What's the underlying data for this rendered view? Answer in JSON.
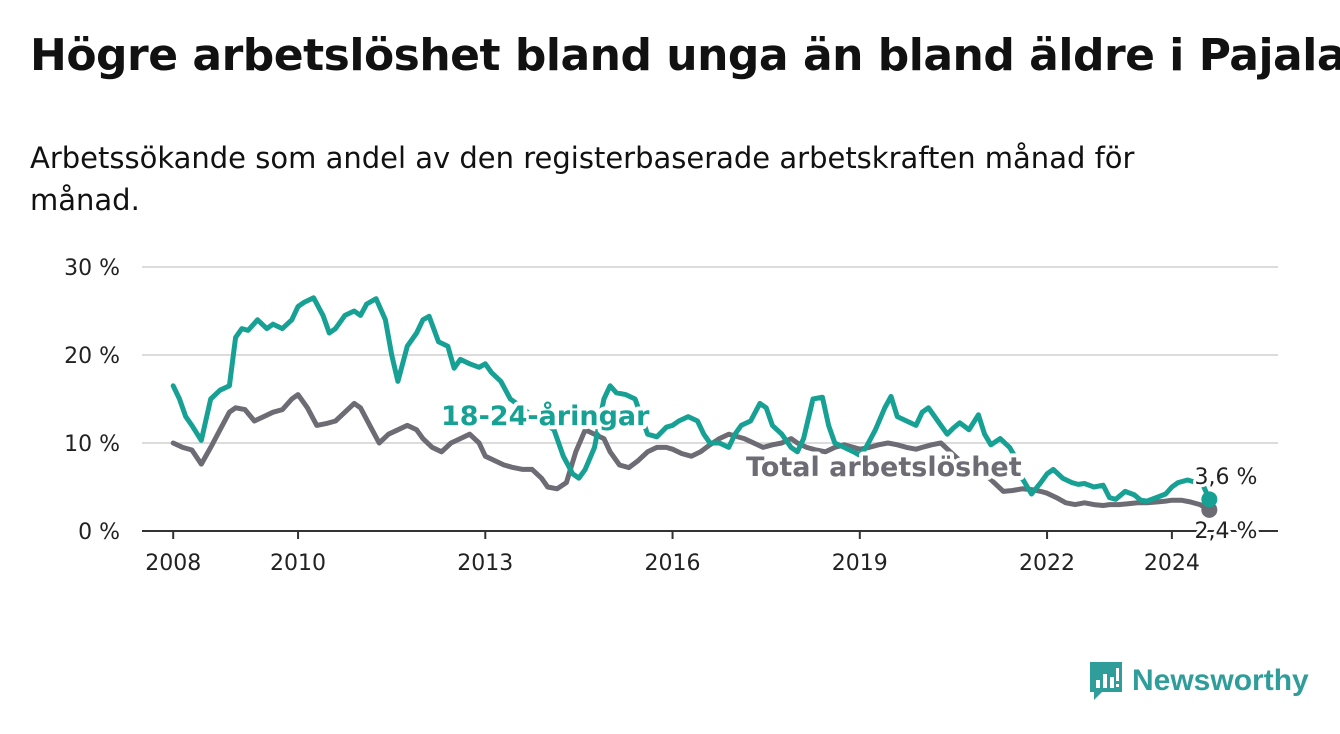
{
  "title": "Högre arbetslöshet bland unga än bland äldre i Pajala",
  "subtitle": "Arbetssökande som andel av den registerbaserade arbetskraften månad för månad.",
  "brand": "Newsworthy",
  "colors": {
    "youth": "#16a194",
    "total": "#6d6b73",
    "brand": "#2f9d9a"
  },
  "chart_data": {
    "type": "line",
    "title": "",
    "xlabel": "",
    "ylabel": "",
    "ylim": [
      0,
      30
    ],
    "xlim": [
      2007.5,
      2025.7
    ],
    "y_ticks": [
      0,
      10,
      20,
      30
    ],
    "y_tick_labels": [
      "0 %",
      "10 %",
      "20 %",
      "30 %"
    ],
    "x_ticks": [
      2008,
      2010,
      2013,
      2016,
      2019,
      2022,
      2024
    ],
    "x_tick_labels": [
      "2008",
      "2010",
      "2013",
      "2016",
      "2019",
      "2022",
      "2024"
    ],
    "grid": true,
    "legend": "inline",
    "series": [
      {
        "name": "18-24-åringar",
        "end_label": "3,6 %",
        "x": [
          2008.0,
          2008.1,
          2008.2,
          2008.3,
          2008.45,
          2008.6,
          2008.75,
          2008.9,
          2009.0,
          2009.1,
          2009.2,
          2009.35,
          2009.5,
          2009.6,
          2009.75,
          2009.9,
          2010.0,
          2010.1,
          2010.25,
          2010.4,
          2010.5,
          2010.6,
          2010.75,
          2010.9,
          2011.0,
          2011.1,
          2011.25,
          2011.4,
          2011.5,
          2011.6,
          2011.75,
          2011.9,
          2012.0,
          2012.1,
          2012.25,
          2012.4,
          2012.5,
          2012.6,
          2012.75,
          2012.9,
          2013.0,
          2013.1,
          2013.25,
          2013.4,
          2013.5,
          2013.6,
          2013.75,
          2013.9,
          2014.0,
          2014.1,
          2014.25,
          2014.4,
          2014.5,
          2014.6,
          2014.75,
          2014.9,
          2015.0,
          2015.1,
          2015.25,
          2015.4,
          2015.5,
          2015.6,
          2015.75,
          2015.9,
          2016.0,
          2016.1,
          2016.25,
          2016.4,
          2016.5,
          2016.6,
          2016.75,
          2016.9,
          2017.0,
          2017.1,
          2017.25,
          2017.4,
          2017.5,
          2017.6,
          2017.75,
          2017.9,
          2018.0,
          2018.1,
          2018.25,
          2018.4,
          2018.5,
          2018.6,
          2018.75,
          2018.9,
          2019.0,
          2019.1,
          2019.25,
          2019.4,
          2019.5,
          2019.6,
          2019.75,
          2019.9,
          2020.0,
          2020.1,
          2020.25,
          2020.4,
          2020.5,
          2020.6,
          2020.75,
          2020.9,
          2021.0,
          2021.1,
          2021.25,
          2021.4,
          2021.5,
          2021.6,
          2021.75,
          2021.9,
          2022.0,
          2022.1,
          2022.25,
          2022.4,
          2022.5,
          2022.6,
          2022.75,
          2022.9,
          2023.0,
          2023.1,
          2023.25,
          2023.4,
          2023.5,
          2023.6,
          2023.75,
          2023.9,
          2024.0,
          2024.1,
          2024.25,
          2024.4,
          2024.5,
          2024.6
        ],
        "y": [
          16.5,
          15,
          13,
          12,
          10.3,
          15,
          16,
          16.5,
          22,
          23,
          22.8,
          24,
          23,
          23.5,
          23,
          24,
          25.5,
          26,
          26.5,
          24.5,
          22.5,
          23,
          24.5,
          25,
          24.5,
          25.8,
          26.4,
          24,
          20,
          17,
          21,
          22.5,
          24,
          24.4,
          21.5,
          21,
          18.5,
          19.5,
          19,
          18.6,
          19,
          18,
          17,
          15,
          14.5,
          14,
          13,
          12.5,
          12,
          11.5,
          8.5,
          6.5,
          6,
          7,
          9.5,
          15,
          16.5,
          15.7,
          15.5,
          15,
          13,
          11,
          10.7,
          11.8,
          12,
          12.5,
          13,
          12.5,
          11,
          10,
          10,
          9.5,
          11,
          12,
          12.5,
          14.5,
          14,
          12,
          11,
          9.5,
          9,
          10.5,
          15,
          15.2,
          12,
          10,
          9.5,
          9,
          8.6,
          9.5,
          11.5,
          14,
          15.3,
          13,
          12.5,
          12,
          13.5,
          14,
          12.5,
          11,
          11.7,
          12.3,
          11.5,
          13.2,
          11,
          9.8,
          10.5,
          9.5,
          8.3,
          6,
          4.2,
          5.5,
          6.5,
          7,
          6,
          5.5,
          5.3,
          5.4,
          5,
          5.2,
          3.8,
          3.6,
          4.5,
          4.1,
          3.5,
          3.4,
          3.8,
          4.2,
          5,
          5.5,
          5.8,
          5.5,
          5.2,
          3.6
        ]
      },
      {
        "name": "Total arbetslöshet",
        "end_label": "2,4 %",
        "x": [
          2008.0,
          2008.15,
          2008.3,
          2008.45,
          2008.6,
          2008.75,
          2008.9,
          2009.0,
          2009.15,
          2009.3,
          2009.45,
          2009.6,
          2009.75,
          2009.9,
          2010.0,
          2010.15,
          2010.3,
          2010.45,
          2010.6,
          2010.75,
          2010.9,
          2011.0,
          2011.15,
          2011.3,
          2011.45,
          2011.6,
          2011.75,
          2011.9,
          2012.0,
          2012.15,
          2012.3,
          2012.45,
          2012.6,
          2012.75,
          2012.9,
          2013.0,
          2013.15,
          2013.3,
          2013.45,
          2013.6,
          2013.75,
          2013.9,
          2014.0,
          2014.15,
          2014.3,
          2014.45,
          2014.6,
          2014.75,
          2014.9,
          2015.0,
          2015.15,
          2015.3,
          2015.45,
          2015.6,
          2015.75,
          2015.9,
          2016.0,
          2016.15,
          2016.3,
          2016.45,
          2016.6,
          2016.75,
          2016.9,
          2017.0,
          2017.15,
          2017.3,
          2017.45,
          2017.6,
          2017.75,
          2017.9,
          2018.0,
          2018.15,
          2018.3,
          2018.45,
          2018.6,
          2018.75,
          2018.9,
          2019.0,
          2019.15,
          2019.3,
          2019.45,
          2019.6,
          2019.75,
          2019.9,
          2020.0,
          2020.15,
          2020.3,
          2020.45,
          2020.6,
          2020.75,
          2020.9,
          2021.0,
          2021.15,
          2021.3,
          2021.45,
          2021.6,
          2021.75,
          2021.9,
          2022.0,
          2022.15,
          2022.3,
          2022.45,
          2022.6,
          2022.75,
          2022.9,
          2023.0,
          2023.15,
          2023.3,
          2023.45,
          2023.6,
          2023.75,
          2023.9,
          2024.0,
          2024.15,
          2024.3,
          2024.45,
          2024.6
        ],
        "y": [
          10,
          9.5,
          9.2,
          7.6,
          9.5,
          11.5,
          13.5,
          14,
          13.8,
          12.5,
          13,
          13.5,
          13.8,
          15,
          15.5,
          14,
          12,
          12.2,
          12.5,
          13.5,
          14.5,
          14,
          12,
          10,
          11,
          11.5,
          12,
          11.5,
          10.5,
          9.5,
          9,
          10,
          10.5,
          11,
          10,
          8.5,
          8,
          7.5,
          7.2,
          7,
          7,
          6,
          5,
          4.8,
          5.5,
          9,
          11.5,
          11,
          10.5,
          9,
          7.5,
          7.2,
          8,
          9,
          9.5,
          9.5,
          9.3,
          8.8,
          8.5,
          9,
          9.8,
          10.5,
          11,
          10.8,
          10.5,
          10,
          9.5,
          9.8,
          10,
          10.5,
          10,
          9.5,
          9.2,
          9,
          9.5,
          9.8,
          9.5,
          9.3,
          9.5,
          9.8,
          10,
          9.8,
          9.5,
          9.3,
          9.5,
          9.8,
          10,
          9,
          8,
          7.5,
          7,
          6.5,
          5.5,
          4.5,
          4.6,
          4.8,
          4.7,
          4.5,
          4.3,
          3.8,
          3.2,
          3,
          3.2,
          3,
          2.9,
          3,
          3,
          3.1,
          3.2,
          3.2,
          3.3,
          3.4,
          3.5,
          3.5,
          3.3,
          3,
          2.4
        ]
      }
    ]
  }
}
